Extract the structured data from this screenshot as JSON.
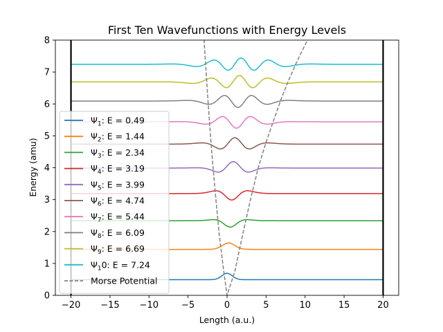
{
  "chart_data": {
    "type": "line",
    "title": "First Ten Wavefunctions with Energy Levels",
    "xlabel": "Length (a.u.)",
    "ylabel": "Energy (amu)",
    "xlim": [
      -22,
      22
    ],
    "ylim": [
      0,
      8
    ],
    "xticks": [
      -20,
      -15,
      -10,
      -5,
      0,
      5,
      10,
      15,
      20
    ],
    "yticks": [
      0,
      1,
      2,
      3,
      4,
      5,
      6,
      7,
      8
    ],
    "grid": false,
    "legend_position": "lower-left",
    "walls": [
      -20,
      20
    ],
    "series": [
      {
        "name_prefix": "Ψ",
        "name_index": "1",
        "name_suffix": ": E = 0.49",
        "energy": 0.49,
        "color": "#1f77b4"
      },
      {
        "name_prefix": "Ψ",
        "name_index": "2",
        "name_suffix": ": E = 1.44",
        "energy": 1.44,
        "color": "#ff7f0e"
      },
      {
        "name_prefix": "Ψ",
        "name_index": "3",
        "name_suffix": ": E = 2.34",
        "energy": 2.34,
        "color": "#2ca02c"
      },
      {
        "name_prefix": "Ψ",
        "name_index": "4",
        "name_suffix": ": E = 3.19",
        "energy": 3.19,
        "color": "#d62728"
      },
      {
        "name_prefix": "Ψ",
        "name_index": "5",
        "name_suffix": ": E = 3.99",
        "energy": 3.99,
        "color": "#9467bd"
      },
      {
        "name_prefix": "Ψ",
        "name_index": "6",
        "name_suffix": ": E = 4.74",
        "energy": 4.74,
        "color": "#8c564b"
      },
      {
        "name_prefix": "Ψ",
        "name_index": "7",
        "name_suffix": ": E = 5.44",
        "energy": 5.44,
        "color": "#e377c2"
      },
      {
        "name_prefix": "Ψ",
        "name_index": "8",
        "name_suffix": ": E = 6.09",
        "energy": 6.09,
        "color": "#7f7f7f"
      },
      {
        "name_prefix": "Ψ",
        "name_index": "9",
        "name_suffix": ": E = 6.69",
        "energy": 6.69,
        "color": "#bcbd22"
      },
      {
        "name_prefix": "Ψ",
        "name_index": "1",
        "name_suffix": "0: E = 7.24",
        "energy": 7.24,
        "color": "#17becf"
      }
    ],
    "potential": {
      "name": "Morse Potential",
      "color": "#808080",
      "style": "dashed",
      "x": [
        -3.0,
        -2.5,
        -2.0,
        -1.5,
        -1.0,
        -0.5,
        0.0,
        1.0,
        2.0,
        3.0,
        4.0,
        5.0,
        6.0,
        7.0,
        8.0,
        9.0,
        10.0,
        11.0
      ],
      "y": [
        8.2,
        6.3,
        4.6,
        3.2,
        1.9,
        0.9,
        0.0,
        0.75,
        1.9,
        3.0,
        4.0,
        4.8,
        5.5,
        6.2,
        6.8,
        7.35,
        7.85,
        8.3
      ]
    }
  }
}
